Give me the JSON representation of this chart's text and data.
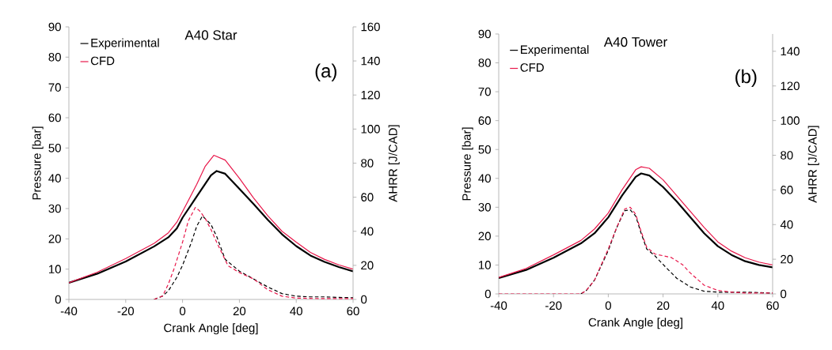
{
  "chart_data": [
    {
      "type": "line",
      "title": "A40 Star",
      "xlabel": "Crank Angle [deg]",
      "ylabel": "Pressure [bar]",
      "y2label": "AHRR [J/CAD]",
      "annotations": [
        "(a)"
      ],
      "xlim": [
        -40,
        60
      ],
      "xticks": [
        -40,
        -20,
        0,
        20,
        40,
        60
      ],
      "ylim": [
        0,
        90
      ],
      "yticks": [
        0,
        10,
        20,
        30,
        40,
        50,
        60,
        70,
        80,
        90
      ],
      "y2lim": [
        0,
        160
      ],
      "y2ticks": [
        0,
        20,
        40,
        60,
        80,
        100,
        120,
        140,
        160
      ],
      "legend": "top left",
      "series": [
        {
          "name": "Experimental",
          "color": "#000000",
          "line_style": "solid",
          "x": [
            -40,
            -30,
            -20,
            -10,
            -5,
            -2,
            0,
            5,
            10,
            12,
            15,
            20,
            25,
            30,
            35,
            40,
            45,
            50,
            55,
            60
          ],
          "values": [
            5.5,
            8.5,
            12.5,
            17.5,
            20.5,
            23.5,
            27,
            34,
            41,
            42.4,
            41.5,
            36.5,
            31.5,
            26.3,
            21.5,
            17.6,
            14.5,
            12.4,
            10.7,
            9.3
          ]
        },
        {
          "name": "CFD",
          "color": "#e8174a",
          "line_style": "solid",
          "x": [
            -40,
            -30,
            -20,
            -10,
            -5,
            -2,
            0,
            5,
            8,
            11,
            15,
            20,
            25,
            30,
            35,
            40,
            45,
            50,
            55,
            60
          ],
          "values": [
            5.5,
            9,
            13.5,
            18.5,
            22,
            25.5,
            29,
            38,
            44,
            47.6,
            46,
            40,
            33.5,
            27.6,
            22.5,
            18.9,
            15.5,
            13.2,
            11.4,
            10
          ]
        },
        {
          "color": "#000000",
          "line_style": "dashed",
          "axis": "y2",
          "x": [
            -10,
            -7,
            -5,
            -2,
            0,
            3,
            5,
            7,
            10,
            12,
            15,
            20,
            25,
            30,
            35,
            40,
            45,
            50,
            55,
            60
          ],
          "values": [
            0,
            2,
            5,
            13,
            20,
            33,
            43,
            49,
            44,
            37,
            23.5,
            16.6,
            12,
            7.3,
            3.4,
            1.9,
            1.5,
            1.5,
            1.2,
            1
          ]
        },
        {
          "color": "#e8174a",
          "line_style": "dashed",
          "axis": "y2",
          "x": [
            -10,
            -7,
            -5,
            -3,
            0,
            2,
            4.5,
            6,
            8,
            10,
            12,
            16,
            20,
            25,
            30,
            35,
            40,
            45,
            50,
            55,
            60
          ],
          "values": [
            0,
            2,
            9,
            18,
            33.6,
            46,
            54,
            52,
            47.5,
            41,
            33.6,
            19.7,
            15.8,
            12,
            5.7,
            1.9,
            0.8,
            0.6,
            0.5,
            0.5,
            0.5
          ]
        }
      ]
    },
    {
      "type": "line",
      "title": "A40 Tower",
      "xlabel": "Crank Angle [deg]",
      "ylabel": "Pressure [bar]",
      "y2label": "AHRR [J/CAD]",
      "annotations": [
        "(b)"
      ],
      "xlim": [
        -40,
        60
      ],
      "xticks": [
        -40,
        -20,
        0,
        20,
        40,
        60
      ],
      "ylim": [
        0,
        90
      ],
      "yticks": [
        0,
        10,
        20,
        30,
        40,
        50,
        60,
        70,
        80,
        90
      ],
      "y2lim": [
        0,
        150
      ],
      "y2ticks": [
        0,
        20,
        40,
        60,
        80,
        100,
        120,
        140
      ],
      "legend": "top left",
      "series": [
        {
          "name": "Experimental",
          "color": "#000000",
          "line_style": "solid",
          "x": [
            -40,
            -30,
            -20,
            -10,
            -5,
            0,
            5,
            10,
            12,
            15,
            20,
            25,
            30,
            35,
            40,
            45,
            50,
            55,
            60
          ],
          "values": [
            5.5,
            8.3,
            12.5,
            17.5,
            21,
            26.5,
            34,
            40.5,
            41.7,
            41,
            37,
            32,
            26.5,
            21,
            16.5,
            13.5,
            11.3,
            10,
            9.2
          ]
        },
        {
          "name": "CFD",
          "color": "#e8174a",
          "line_style": "solid",
          "x": [
            -40,
            -30,
            -20,
            -10,
            -5,
            0,
            5,
            10,
            12,
            15,
            20,
            25,
            30,
            35,
            40,
            45,
            50,
            55,
            60
          ],
          "values": [
            5.7,
            8.8,
            13.5,
            18.5,
            22.5,
            28,
            36,
            43,
            44,
            43.5,
            39.5,
            34,
            28.5,
            23,
            18,
            14.8,
            12.5,
            11,
            10
          ]
        },
        {
          "color": "#000000",
          "line_style": "dashed",
          "axis": "y2",
          "x": [
            -10,
            -8,
            -5,
            0,
            3,
            6,
            8,
            10,
            12,
            14,
            17,
            20,
            25,
            30,
            35,
            40,
            50,
            60
          ],
          "values": [
            0,
            2,
            8,
            25,
            38,
            48,
            48.5,
            45,
            35,
            26,
            22,
            17,
            9,
            4,
            1.5,
            1,
            1,
            0.5
          ]
        },
        {
          "color": "#e8174a",
          "line_style": "dashed",
          "axis": "y2",
          "x": [
            -40,
            -10,
            -8,
            -5,
            0,
            3,
            6,
            8,
            10,
            12,
            14,
            17,
            20,
            23,
            27,
            30,
            35,
            40,
            45,
            50,
            60
          ],
          "values": [
            0,
            0,
            2,
            8,
            26,
            38,
            49,
            50,
            46,
            36,
            27,
            23,
            22,
            21,
            17,
            12,
            5,
            2,
            1,
            0.5,
            0.5
          ]
        }
      ]
    }
  ]
}
